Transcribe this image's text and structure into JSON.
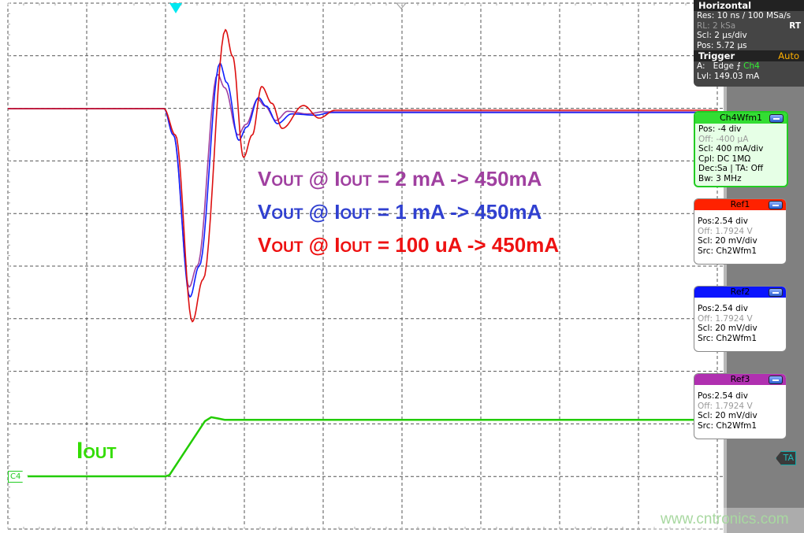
{
  "chart_data": {
    "type": "line",
    "title": "",
    "xlabel": "",
    "ylabel": "",
    "x_unit": "us",
    "x_scale_per_div": "2 µs/div",
    "xlim": [
      0,
      20
    ],
    "grid": true,
    "vout_unit": "mV (deviation from baseline)",
    "vout_ylim": [
      -100,
      40
    ],
    "iout_unit": "mA",
    "series": [
      {
        "name": "VOUT @ IOUT = 2 mA -> 450mA",
        "color": "#a040a0",
        "axis": "vout",
        "x": [
          0,
          3.96,
          4.2,
          4.6,
          4.8,
          5.32,
          5.5,
          5.84,
          6.04,
          6.34,
          6.52,
          6.8,
          7.1,
          7.6,
          8.0,
          18
        ],
        "y": [
          0,
          0,
          -10,
          -67.8,
          -60,
          13,
          8,
          -10,
          -6,
          3.6,
          1,
          -4.5,
          -1,
          -2,
          -1.2,
          -1.2
        ]
      },
      {
        "name": "VOUT @ IOUT = 1 mA -> 450mA",
        "color": "#1020ff",
        "axis": "vout",
        "x": [
          0,
          3.96,
          4.2,
          4.62,
          4.85,
          5.38,
          5.55,
          5.86,
          6.06,
          6.36,
          6.55,
          6.84,
          7.2,
          7.8,
          8.2,
          18
        ],
        "y": [
          0,
          0,
          -10,
          -71.6,
          -60,
          17.3,
          10,
          -12,
          -7,
          4.2,
          1,
          -5.7,
          -2,
          -2.5,
          -1.5,
          -1.5
        ]
      },
      {
        "name": "VOUT @ IOUT = 100 uA -> 450mA",
        "color": "#dd1010",
        "axis": "vout",
        "x": [
          0,
          3.96,
          4.25,
          4.68,
          4.95,
          5.52,
          5.7,
          5.98,
          6.2,
          6.44,
          6.7,
          6.96,
          7.5,
          7.9,
          8.3,
          18
        ],
        "y": [
          0,
          0,
          -10,
          -81,
          -65,
          30,
          20,
          -18.5,
          -10,
          8.4,
          2,
          -7.5,
          1.2,
          -3.6,
          -0.6,
          -0.6
        ]
      },
      {
        "name": "IOUT",
        "color": "#22cc00",
        "axis": "iout",
        "x": [
          0,
          4.0,
          4.1,
          5.0,
          5.16,
          5.5,
          18
        ],
        "y": [
          0,
          0,
          10,
          420,
          450,
          430,
          430
        ]
      }
    ],
    "annotations": {
      "legend": [
        {
          "v": "V",
          "vsub": "OUT",
          "at": " @ ",
          "i": "I",
          "isub": "OUT",
          "rest": " = 2 mA -> 450mA",
          "color": "#a040a0"
        },
        {
          "v": "V",
          "vsub": "OUT",
          "at": " @ ",
          "i": "I",
          "isub": "OUT",
          "rest": " = 1 mA -> 450mA",
          "color": "#3040d0"
        },
        {
          "v": "V",
          "vsub": "OUT",
          "at": " @ ",
          "i": "I",
          "isub": "OUT",
          "rest": " = 100 uA -> 450mA",
          "color": "#ee1111"
        }
      ],
      "iout_label": {
        "main": "I",
        "sub": "OUT"
      }
    }
  },
  "horizontal": {
    "title": "Horizontal",
    "res_label": "Res:",
    "res_value": "10 ns / 100 MSa/s",
    "rl_label": "RL:",
    "rl_value": "2 kSa",
    "rt": "RT",
    "scl_label": "Scl:",
    "scl_value": "2 µs/div",
    "pos_label": "Pos:",
    "pos_value": "5.72 µs"
  },
  "trigger": {
    "title": "Trigger",
    "mode": "Auto",
    "a_label": "A:",
    "a_type": "Edge",
    "a_source": "Ch4",
    "lvl_label": "Lvl:",
    "lvl_value": "149.03 mA"
  },
  "ch4": {
    "title": "Ch4Wfm1",
    "pos": "Pos: -4 div",
    "off": "Off: -400 µA",
    "scl": "Scl: 400 mA/div",
    "cpl": "Cpl: DC 1MΩ",
    "dec": "Dec:Sa | TA: Off",
    "bw": "Bw: 3 MHz",
    "color": "#33dd33"
  },
  "refs": [
    {
      "title": "Ref1",
      "pos": "Pos:2.54 div",
      "off": "Off: 1.7924 V",
      "scl": "Scl: 20 mV/div",
      "src": "Src: Ch2Wfm1",
      "color": "#ff2200"
    },
    {
      "title": "Ref2",
      "pos": "Pos:2.54 div",
      "off": "Off: 1.7924 V",
      "scl": "Scl: 20 mV/div",
      "src": "Src: Ch2Wfm1",
      "color": "#0a14ff"
    },
    {
      "title": "Ref3",
      "pos": "Pos:2.54 div",
      "off": "Off: 1.7924 V",
      "scl": "Scl: 20 mV/div",
      "src": "Src: Ch2Wfm1",
      "color": "#b030b0"
    }
  ],
  "markers": {
    "ch4_marker": "C4",
    "ta_marker": "TA",
    "trigger_color": "#00e8f0"
  },
  "watermark": "www.cntronics.com"
}
